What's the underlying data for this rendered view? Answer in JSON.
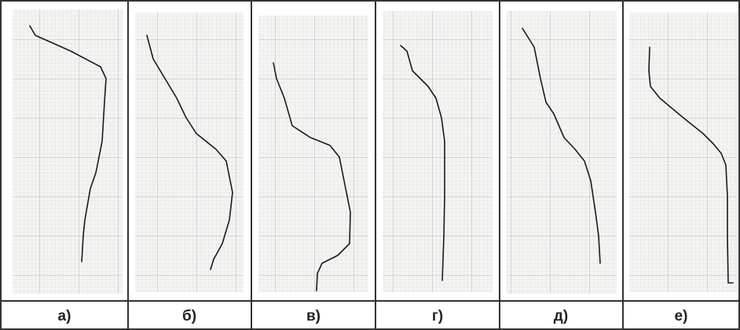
{
  "panels": [
    {
      "label": "а)"
    },
    {
      "label": "б)"
    },
    {
      "label": "в)"
    },
    {
      "label": "г)"
    },
    {
      "label": "д)"
    },
    {
      "label": "е)"
    }
  ]
}
